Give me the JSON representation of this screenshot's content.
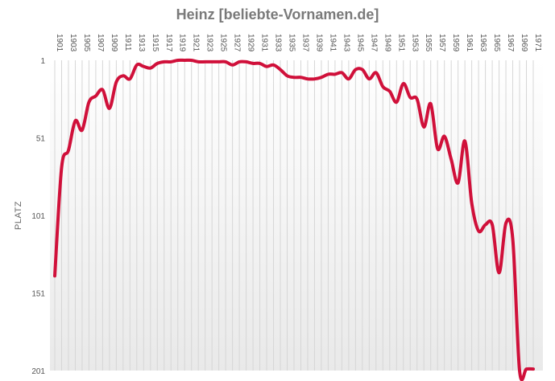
{
  "chart_data": {
    "type": "line",
    "title": "Heinz [beliebte-Vornamen.de]",
    "xlabel": "",
    "ylabel": "PLATZ",
    "y_inverted": true,
    "ylim": [
      1,
      201
    ],
    "yticks": [
      "1",
      "51",
      "101",
      "151",
      "201"
    ],
    "xticks": [
      "1901",
      "1903",
      "1905",
      "1907",
      "1909",
      "1911",
      "1913",
      "1915",
      "1917",
      "1919",
      "1921",
      "1923",
      "1925",
      "1927",
      "1929",
      "1931",
      "1933",
      "1935",
      "1937",
      "1939",
      "1941",
      "1943",
      "1945",
      "1947",
      "1949",
      "1951",
      "1953",
      "1955",
      "1957",
      "1959",
      "1961",
      "1963",
      "1965",
      "1967",
      "1969",
      "1971"
    ],
    "grid": "vertical",
    "line_color": "#d0103a",
    "series": [
      {
        "x": [
          1901,
          1902,
          1903,
          1904,
          1905,
          1906,
          1907,
          1908,
          1909,
          1910,
          1911,
          1912,
          1913,
          1914,
          1915,
          1916,
          1917,
          1918,
          1919,
          1920,
          1921,
          1922,
          1923,
          1924,
          1925,
          1926,
          1927,
          1928,
          1929,
          1930,
          1931,
          1932,
          1933,
          1934,
          1935,
          1936,
          1937,
          1938,
          1939,
          1940,
          1941,
          1942,
          1943,
          1944,
          1945,
          1946,
          1947,
          1948,
          1949,
          1950,
          1951,
          1952,
          1953,
          1954,
          1955,
          1956,
          1957,
          1958,
          1959,
          1960,
          1961,
          1962,
          1963,
          1964,
          1965,
          1966,
          1967,
          1968,
          1969,
          1970,
          1971
        ],
        "y": [
          140,
          70,
          59,
          40,
          46,
          28,
          24,
          20,
          32,
          15,
          11,
          13,
          4,
          5,
          6,
          3,
          2,
          2,
          1,
          1,
          1,
          2,
          2,
          2,
          2,
          2,
          4,
          2,
          2,
          3,
          3,
          5,
          4,
          7,
          11,
          12,
          12,
          13,
          13,
          12,
          10,
          10,
          9,
          13,
          7,
          7,
          13,
          9,
          18,
          21,
          28,
          16,
          25,
          26,
          44,
          29,
          58,
          50,
          65,
          80,
          53,
          93,
          111,
          107,
          107,
          138,
          106,
          116,
          201,
          200,
          200
        ]
      }
    ]
  }
}
